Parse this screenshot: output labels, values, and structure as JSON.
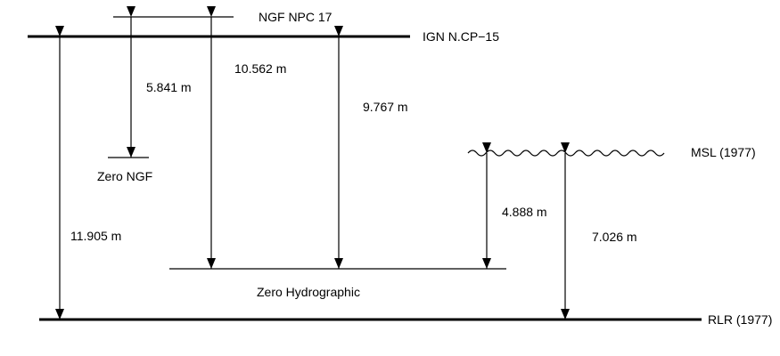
{
  "diagram": {
    "levels": {
      "ngf_npc": "NGF NPC 17",
      "ign_ncp": "IGN N.CP−15",
      "zero_ngf": "Zero NGF",
      "msl": "MSL (1977)",
      "zero_hydrographic": "Zero Hydrographic",
      "rlr": "RLR (1977)"
    },
    "distances": {
      "ngf_npc_to_zero_ngf": "5.841 m",
      "ngf_npc_to_zero_hydrographic": "10.562 m",
      "ign_ncp_to_zero_hydrographic": "9.767 m",
      "msl_to_zero_hydrographic": "4.888 m",
      "msl_to_rlr": "7.026 m",
      "ign_ncp_to_rlr": "11.905 m"
    },
    "colors": {
      "line": "#000000",
      "background": "#ffffff"
    }
  }
}
